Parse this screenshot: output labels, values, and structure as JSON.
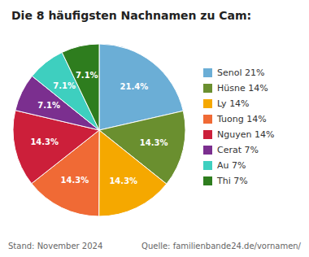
{
  "chart_data": {
    "type": "pie",
    "title": "Die 8 häufigsten Nachnamen zu Cam:",
    "categories": [
      "Senol 21%",
      "Hüsne 14%",
      "Ly 14%",
      "Tuong 14%",
      "Nguyen 14%",
      "Cerat 7%",
      "Au 7%",
      "Thi 7%"
    ],
    "values": [
      21.4,
      14.3,
      14.3,
      14.3,
      14.3,
      7.1,
      7.1,
      7.1
    ],
    "value_labels": [
      "21.4%",
      "14.3%",
      "14.3%",
      "14.3%",
      "14.3%",
      "7.1%",
      "7.1%",
      "7.1%"
    ],
    "colors": [
      "#6baed6",
      "#6a8f2f",
      "#f5a800",
      "#f06a35",
      "#cc1f3a",
      "#7b2f8f",
      "#3ecfbf",
      "#2e7d1e"
    ],
    "data_labels": true,
    "legend": "right",
    "annotations": [
      "Stand: November 2024",
      "Quelle: familienbande24.de/vornamen/"
    ]
  }
}
